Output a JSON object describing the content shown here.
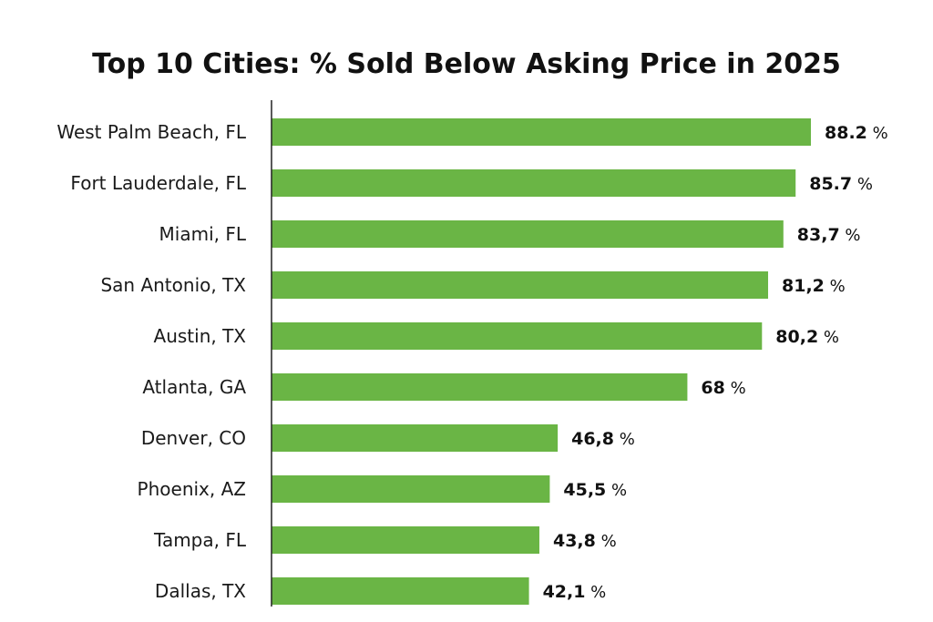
{
  "chart_data": {
    "type": "bar",
    "orientation": "horizontal",
    "title": "Top 10 Cities: % Sold Below Asking Price in 2025",
    "xlabel": "",
    "ylabel": "",
    "categories": [
      "West Palm Beach, FL",
      "Fort Lauderdale, FL",
      "Miami, FL",
      "San Antonio, TX",
      "Austin, TX",
      "Atlanta, GA",
      "Denver, CO",
      "Phoenix, AZ",
      "Tampa, FL",
      "Dallas, TX"
    ],
    "values": [
      88.2,
      85.7,
      83.7,
      81.2,
      80.2,
      68,
      46.8,
      45.5,
      43.8,
      42.1
    ],
    "data_labels": [
      "88.2",
      "85.7",
      "83,7",
      "81,2",
      "80,2",
      "68",
      "46,8",
      "45,5",
      "43,8",
      "42,1"
    ],
    "unit": "%",
    "bar_color": "#6ab545",
    "grid": false,
    "legend": "none"
  }
}
